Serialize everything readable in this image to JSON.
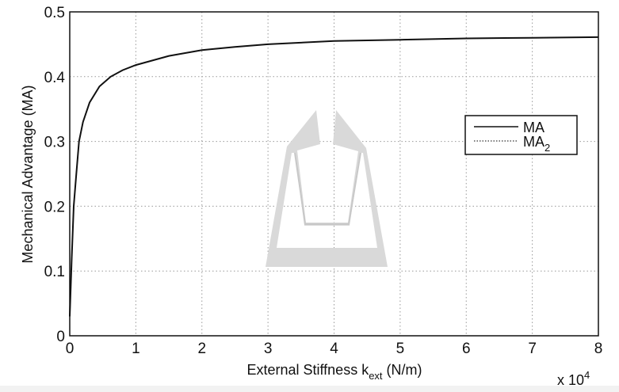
{
  "chart_data": {
    "type": "line",
    "title": "",
    "xlabel": "External Stiffness k",
    "xlabel_sub": "ext",
    "xlabel_unit": " (N/m)",
    "ylabel": "Mechanical Advantage (MA)",
    "x_multiplier": "x 10",
    "x_multiplier_exp": "4",
    "xlim": [
      0,
      8
    ],
    "ylim": [
      0,
      0.5
    ],
    "xticks": [
      "0",
      "1",
      "2",
      "3",
      "4",
      "5",
      "6",
      "7",
      "8"
    ],
    "yticks": [
      "0",
      "0.1",
      "0.2",
      "0.3",
      "0.4",
      "0.5"
    ],
    "grid": true,
    "legend_placement": "right-middle",
    "series": [
      {
        "name": "MA",
        "name_sub": "",
        "style": "solid",
        "x": [
          0,
          0.03,
          0.06,
          0.1,
          0.14,
          0.2,
          0.3,
          0.45,
          0.62,
          0.8,
          1,
          1.5,
          2,
          2.5,
          3,
          4,
          5,
          6,
          7,
          8
        ],
        "y": [
          0.03,
          0.12,
          0.2,
          0.25,
          0.3,
          0.33,
          0.36,
          0.385,
          0.4,
          0.41,
          0.418,
          0.432,
          0.441,
          0.446,
          0.45,
          0.455,
          0.457,
          0.459,
          0.46,
          0.461
        ]
      },
      {
        "name": "MA",
        "name_sub": "2",
        "style": "dotted",
        "x": [
          0,
          0.03,
          0.06,
          0.1,
          0.14,
          0.2,
          0.3,
          0.45,
          0.62,
          0.8,
          1,
          1.5,
          2,
          2.5,
          3,
          4,
          5,
          6,
          7,
          8
        ],
        "y": [
          0.03,
          0.12,
          0.2,
          0.25,
          0.3,
          0.33,
          0.36,
          0.385,
          0.4,
          0.41,
          0.418,
          0.432,
          0.441,
          0.446,
          0.45,
          0.455,
          0.457,
          0.459,
          0.46,
          0.461
        ]
      }
    ]
  },
  "colors": {
    "line": "#111111",
    "grid": "#999999",
    "inset": "#d9d9d9"
  }
}
